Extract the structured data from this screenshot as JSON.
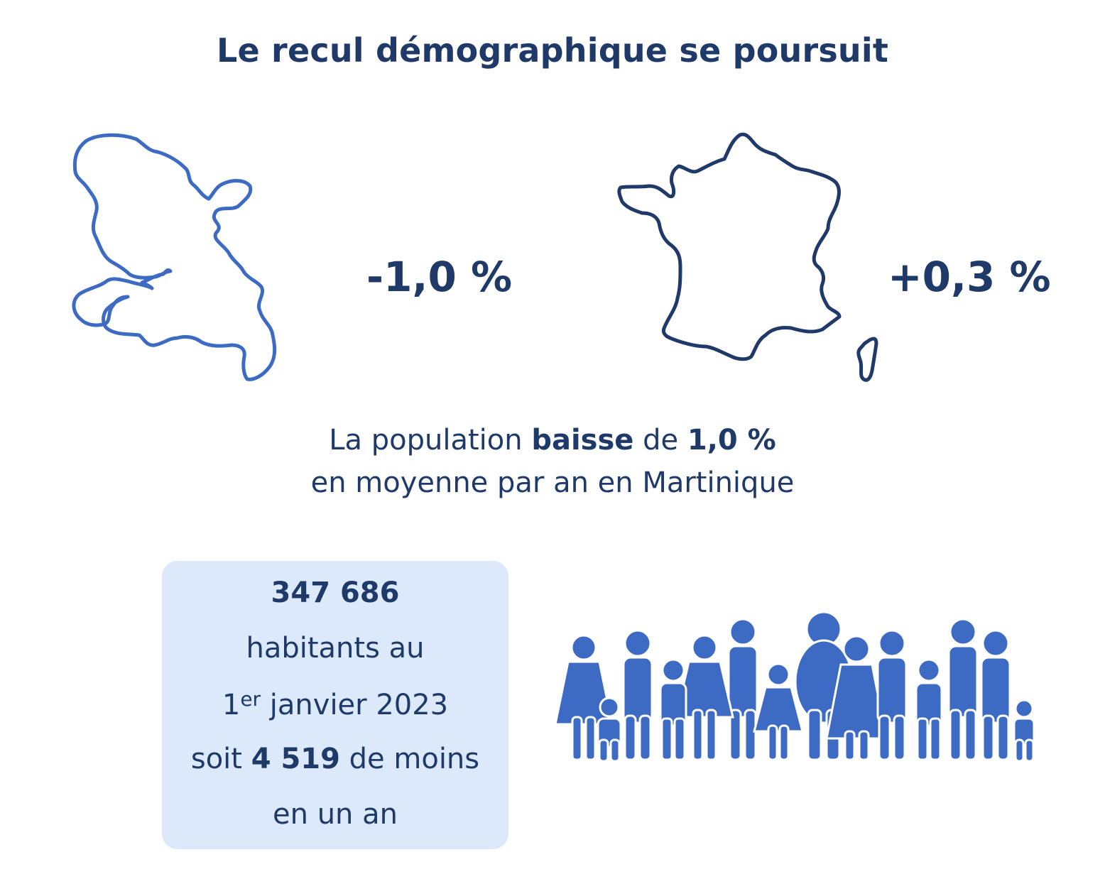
{
  "title": "Le recul démographique se poursuit",
  "martinique": {
    "change": "-1,0 %",
    "icon": "martinique-map-outline"
  },
  "france": {
    "change": "+0,3 %",
    "icon": "france-map-outline"
  },
  "summary": {
    "prefix": "La population ",
    "verb": "baisse",
    "middle": " de ",
    "rate": "1,0 %",
    "line2": "en moyenne par an en Martinique"
  },
  "box": {
    "population": "347 686",
    "line2": "habitants au",
    "day": "1",
    "day_sup": "er",
    "date_rest": " janvier 2023",
    "soit": "soit ",
    "delta": "4 519",
    "delta_suffix": " de moins",
    "line5": "en un an"
  },
  "crowd_icon": "crowd-icon",
  "colors": {
    "title": "#1f3a68",
    "map_martinique": "#3d6bc4",
    "map_france": "#1f3a68",
    "box_bg": "#dbe9fb",
    "people": "#3d6bc4"
  }
}
